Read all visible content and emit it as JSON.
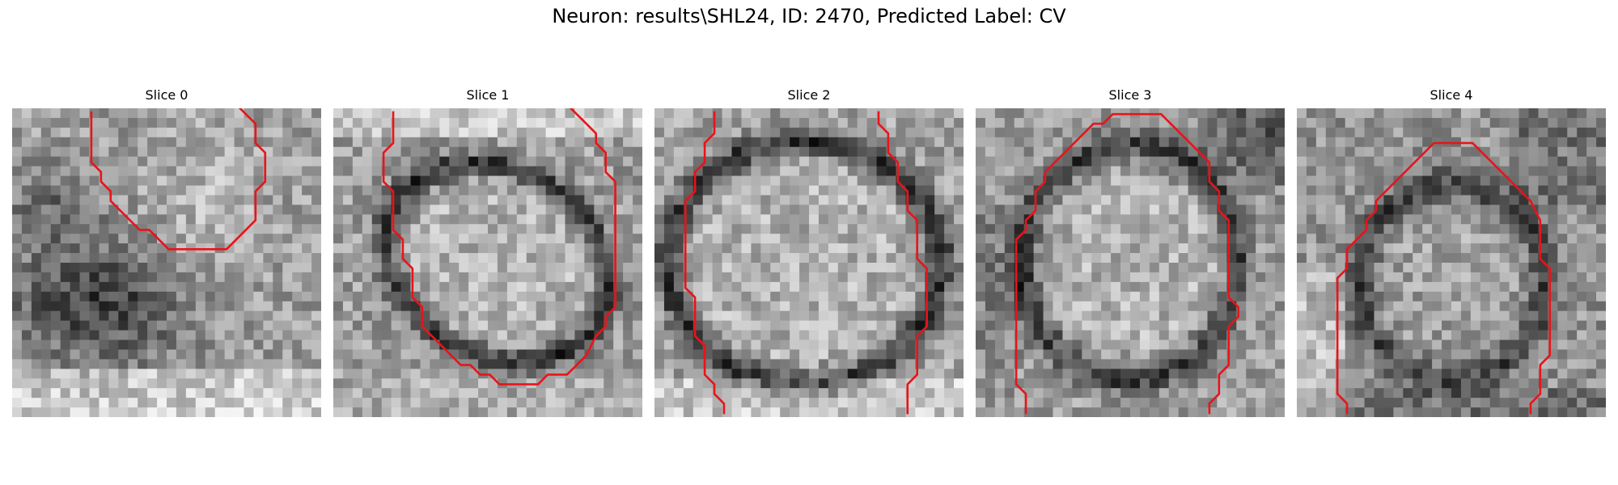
{
  "figure": {
    "title": "Neuron: results\\SHL24, ID: 2470, Predicted Label: CV"
  },
  "slices": [
    {
      "title": "Slice 0"
    },
    {
      "title": "Slice 1"
    },
    {
      "title": "Slice 2"
    },
    {
      "title": "Slice 3"
    },
    {
      "title": "Slice 4"
    }
  ],
  "contour_color": "#e8141a"
}
